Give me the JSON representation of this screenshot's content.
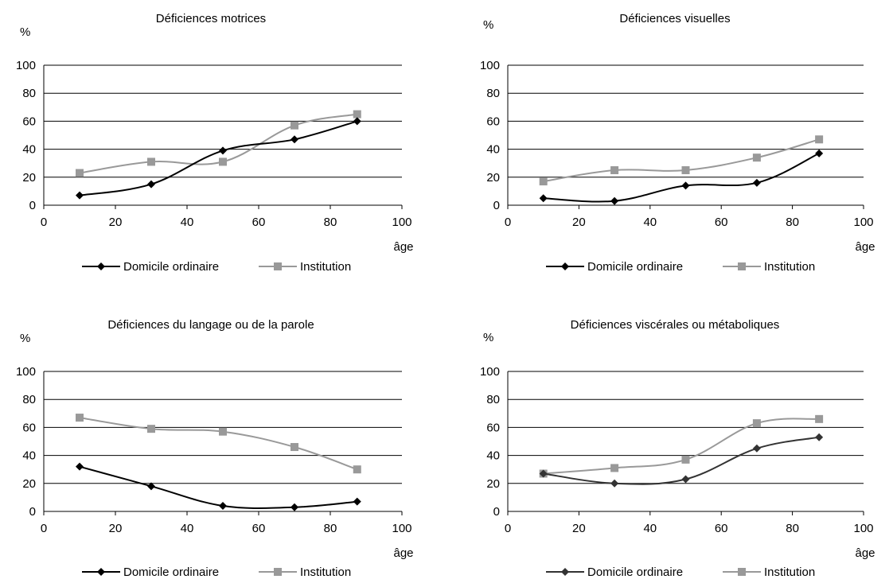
{
  "chart_data": [
    {
      "type": "line",
      "title": "Déficiences motrices",
      "ylabel": "%",
      "xlabel": "âge",
      "xlim": [
        0,
        100
      ],
      "ylim": [
        0,
        100
      ],
      "xticks": [
        0,
        20,
        40,
        60,
        80,
        100
      ],
      "yticks": [
        0,
        20,
        40,
        60,
        80,
        100
      ],
      "grid": "horizontal",
      "legend": "bottom",
      "x": [
        10,
        30,
        50,
        70,
        87.5
      ],
      "series": [
        {
          "name": "Domicile ordinaire",
          "color": "#000000",
          "marker": "diamond",
          "values": [
            7,
            15,
            39,
            47,
            60
          ]
        },
        {
          "name": "Institution",
          "color": "#999999",
          "marker": "square",
          "values": [
            23,
            31,
            31,
            57,
            65
          ]
        }
      ]
    },
    {
      "type": "line",
      "title": "Déficiences visuelles",
      "ylabel": "%",
      "xlabel": "âge",
      "xlim": [
        0,
        100
      ],
      "ylim": [
        0,
        100
      ],
      "xticks": [
        0,
        20,
        40,
        60,
        80,
        100
      ],
      "yticks": [
        0,
        20,
        40,
        60,
        80,
        100
      ],
      "grid": "horizontal",
      "legend": "bottom",
      "x": [
        10,
        30,
        50,
        70,
        87.5
      ],
      "series": [
        {
          "name": "Domicile ordinaire",
          "color": "#000000",
          "marker": "diamond",
          "values": [
            5,
            3,
            14,
            16,
            37
          ]
        },
        {
          "name": "Institution",
          "color": "#999999",
          "marker": "square",
          "values": [
            17,
            25,
            25,
            34,
            47
          ]
        }
      ]
    },
    {
      "type": "line",
      "title": "Déficiences du langage ou de la parole",
      "ylabel": "%",
      "xlabel": "âge",
      "xlim": [
        0,
        100
      ],
      "ylim": [
        0,
        100
      ],
      "xticks": [
        0,
        20,
        40,
        60,
        80,
        100
      ],
      "yticks": [
        0,
        20,
        40,
        60,
        80,
        100
      ],
      "grid": "horizontal",
      "legend": "bottom",
      "x": [
        10,
        30,
        50,
        70,
        87.5
      ],
      "series": [
        {
          "name": "Domicile ordinaire",
          "color": "#000000",
          "marker": "diamond",
          "values": [
            32,
            18,
            4,
            3,
            7
          ]
        },
        {
          "name": "Institution",
          "color": "#999999",
          "marker": "square",
          "values": [
            67,
            59,
            57,
            46,
            30
          ]
        }
      ]
    },
    {
      "type": "line",
      "title": "Déficiences viscérales ou métaboliques",
      "ylabel": "%",
      "xlabel": "âge",
      "xlim": [
        0,
        100
      ],
      "ylim": [
        0,
        100
      ],
      "xticks": [
        0,
        20,
        40,
        60,
        80,
        100
      ],
      "yticks": [
        0,
        20,
        40,
        60,
        80,
        100
      ],
      "grid": "horizontal",
      "legend": "bottom",
      "x": [
        10,
        30,
        50,
        70,
        87.5
      ],
      "series": [
        {
          "name": "Domicile ordinaire",
          "color": "#333333",
          "marker": "diamond",
          "values": [
            27,
            20,
            23,
            45,
            53
          ]
        },
        {
          "name": "Institution",
          "color": "#999999",
          "marker": "square",
          "values": [
            27,
            31,
            37,
            63,
            66
          ]
        }
      ]
    }
  ]
}
